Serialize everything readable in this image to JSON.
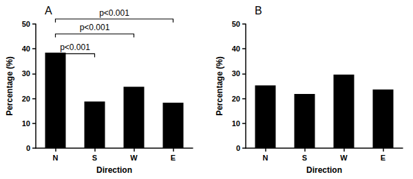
{
  "chart_data": [
    {
      "type": "bar",
      "title": "A",
      "xlabel": "Direction",
      "ylabel": "Percentage (%)",
      "categories": [
        "N",
        "S",
        "W",
        "E"
      ],
      "values": [
        38.5,
        18.8,
        24.7,
        18.3
      ],
      "color": "#000000",
      "ylim": [
        0,
        50
      ],
      "yticks": [
        0,
        10,
        20,
        30,
        40,
        50
      ],
      "grid": false,
      "annotations": [
        {
          "from": "N",
          "to": "S",
          "y": 38,
          "label": "p<0.001"
        },
        {
          "from": "N",
          "to": "W",
          "y": 46,
          "label": "p<0.001"
        },
        {
          "from": "N",
          "to": "E",
          "y": 52,
          "label": "p<0.001"
        }
      ]
    },
    {
      "type": "bar",
      "title": "B",
      "xlabel": "Direction",
      "ylabel": "Percentage (%)",
      "categories": [
        "N",
        "S",
        "W",
        "E"
      ],
      "values": [
        25.3,
        21.8,
        29.6,
        23.6
      ],
      "color": "#000000",
      "ylim": [
        0,
        50
      ],
      "yticks": [
        0,
        10,
        20,
        30,
        40,
        50
      ],
      "grid": false
    }
  ]
}
